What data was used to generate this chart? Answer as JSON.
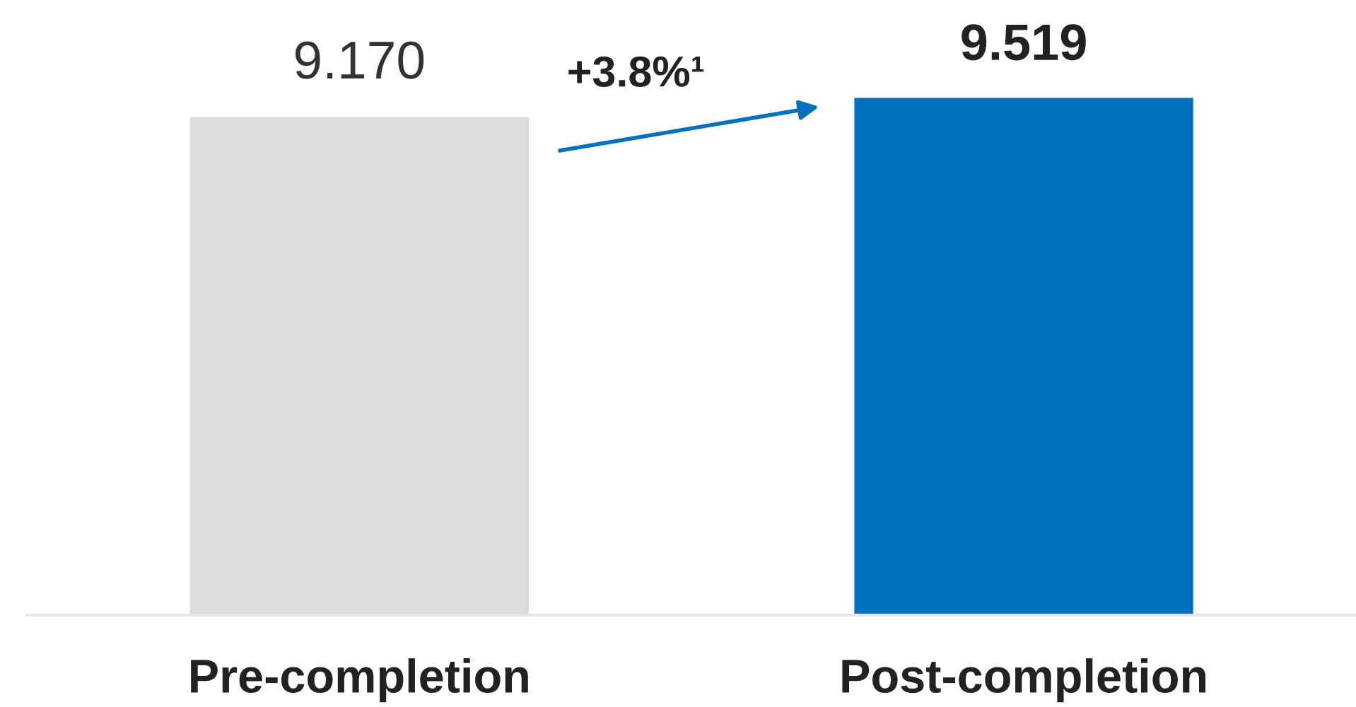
{
  "chart_data": {
    "type": "bar",
    "categories": [
      "Pre-completion",
      "Post-completion"
    ],
    "values": [
      9.17,
      9.519
    ],
    "colors": [
      "#dcdcdc",
      "#0070c0"
    ],
    "value_labels": [
      "9.170",
      "9.519"
    ],
    "tick_labels": "x",
    "annotations": [
      "+3.8%¹"
    ]
  }
}
